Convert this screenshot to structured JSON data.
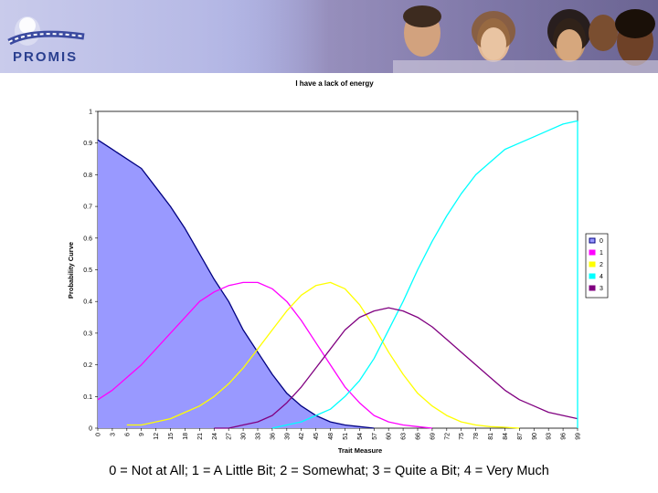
{
  "header": {
    "logo_text": "PROMIS",
    "colors": {
      "brand": "#2a3f8f",
      "banner": "#a9addf"
    }
  },
  "caption": "0 = Not at All; 1 = A Little Bit; 2 = Somewhat; 3 = Quite a Bit; 4 = Very Much",
  "chart_data": {
    "type": "area",
    "title": "I have a lack of energy",
    "xlabel": "Trait Measure",
    "ylabel": "Probability Curve",
    "categories": [
      "0",
      "3",
      "6",
      "9",
      "12",
      "15",
      "18",
      "21",
      "24",
      "27",
      "30",
      "33",
      "36",
      "39",
      "42",
      "45",
      "48",
      "51",
      "54",
      "57",
      "60",
      "63",
      "66",
      "69",
      "72",
      "75",
      "78",
      "81",
      "84",
      "87",
      "90",
      "93",
      "96",
      "99"
    ],
    "xlim": [
      0,
      99
    ],
    "ylim": [
      0,
      1
    ],
    "yticks": [
      "0",
      "0.1",
      "0.2",
      "0.3",
      "0.4",
      "0.5",
      "0.6",
      "0.7",
      "0.8",
      "0.9",
      "1"
    ],
    "legend_position": "right",
    "series": [
      {
        "name": "0",
        "color": "#000080",
        "fill": "#9999ff",
        "x": [
          0,
          3,
          6,
          9,
          12,
          15,
          18,
          21,
          24,
          27,
          30,
          33,
          36,
          39,
          42,
          45,
          48,
          51,
          54,
          57
        ],
        "values": [
          0.91,
          0.88,
          0.85,
          0.82,
          0.76,
          0.7,
          0.63,
          0.55,
          0.47,
          0.4,
          0.31,
          0.24,
          0.17,
          0.11,
          0.07,
          0.04,
          0.02,
          0.01,
          0.005,
          0.0
        ]
      },
      {
        "name": "1",
        "color": "#ff00ff",
        "x": [
          0,
          3,
          6,
          9,
          12,
          15,
          18,
          21,
          24,
          27,
          30,
          33,
          36,
          39,
          42,
          45,
          48,
          51,
          54,
          57,
          60,
          63,
          66,
          69
        ],
        "values": [
          0.09,
          0.12,
          0.16,
          0.2,
          0.25,
          0.3,
          0.35,
          0.4,
          0.43,
          0.45,
          0.46,
          0.46,
          0.44,
          0.4,
          0.34,
          0.27,
          0.2,
          0.13,
          0.08,
          0.04,
          0.02,
          0.01,
          0.005,
          0.0
        ]
      },
      {
        "name": "2",
        "color": "#ffff00",
        "x": [
          6,
          9,
          12,
          15,
          18,
          21,
          24,
          27,
          30,
          33,
          36,
          39,
          42,
          45,
          48,
          51,
          54,
          57,
          60,
          63,
          66,
          69,
          72,
          75,
          78,
          81,
          84,
          87
        ],
        "values": [
          0.01,
          0.01,
          0.02,
          0.03,
          0.05,
          0.07,
          0.1,
          0.14,
          0.19,
          0.25,
          0.31,
          0.37,
          0.42,
          0.45,
          0.46,
          0.44,
          0.39,
          0.32,
          0.24,
          0.17,
          0.11,
          0.07,
          0.04,
          0.02,
          0.01,
          0.005,
          0.003,
          0.0
        ]
      },
      {
        "name": "4",
        "color": "#00ffff",
        "x": [
          36,
          39,
          42,
          45,
          48,
          51,
          54,
          57,
          60,
          63,
          66,
          69,
          72,
          75,
          78,
          81,
          84,
          87,
          90,
          93,
          96,
          99
        ],
        "values": [
          0.0,
          0.01,
          0.02,
          0.04,
          0.06,
          0.1,
          0.15,
          0.22,
          0.31,
          0.4,
          0.5,
          0.59,
          0.67,
          0.74,
          0.8,
          0.84,
          0.88,
          0.9,
          0.92,
          0.94,
          0.96,
          0.97
        ]
      },
      {
        "name": "3",
        "color": "#800080",
        "x": [
          24,
          27,
          30,
          33,
          36,
          39,
          42,
          45,
          48,
          51,
          54,
          57,
          60,
          63,
          66,
          69,
          72,
          75,
          78,
          81,
          84,
          87,
          90,
          93,
          96,
          99
        ],
        "values": [
          0.0,
          0.0,
          0.01,
          0.02,
          0.04,
          0.08,
          0.13,
          0.19,
          0.25,
          0.31,
          0.35,
          0.37,
          0.38,
          0.37,
          0.35,
          0.32,
          0.28,
          0.24,
          0.2,
          0.16,
          0.12,
          0.09,
          0.07,
          0.05,
          0.04,
          0.03
        ]
      }
    ]
  }
}
